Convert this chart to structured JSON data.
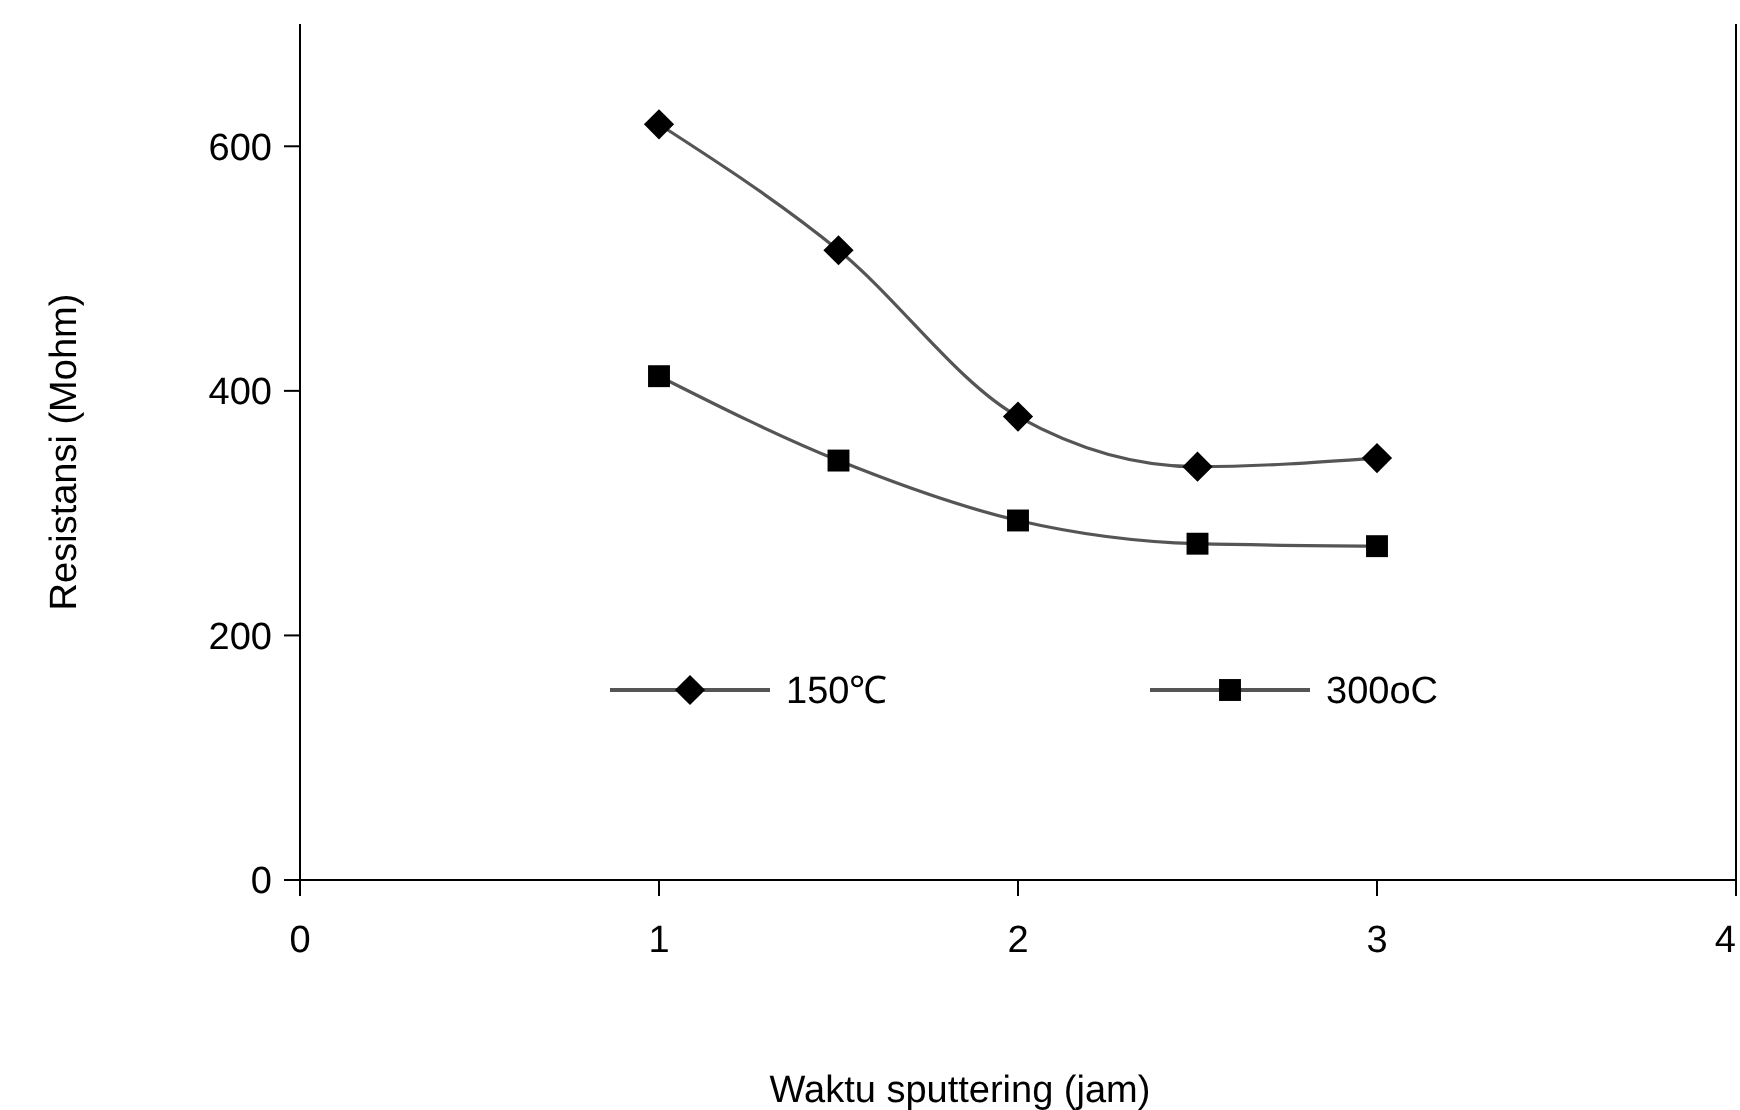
{
  "chart_data": {
    "type": "line",
    "xlabel": "Waktu sputtering (jam)",
    "ylabel": "Resistansi (Mohm)",
    "xlim": [
      0,
      4
    ],
    "xticks": [
      0,
      1,
      2,
      3,
      4
    ],
    "ylim": [
      0,
      700
    ],
    "yticks": [
      0,
      200,
      400,
      600
    ],
    "grid": false,
    "legend": "bottom",
    "line_style": "solid",
    "series": [
      {
        "name": "150℃",
        "color": "#000000",
        "marker": "diamond",
        "x": [
          1,
          1.5,
          2,
          2.5,
          3
        ],
        "values": [
          618,
          515,
          379,
          338,
          345
        ]
      },
      {
        "name": "300oC",
        "color": "#000000",
        "marker": "square",
        "x": [
          1,
          1.5,
          2,
          2.5,
          3
        ],
        "values": [
          412,
          343,
          294,
          275,
          273
        ]
      }
    ]
  }
}
